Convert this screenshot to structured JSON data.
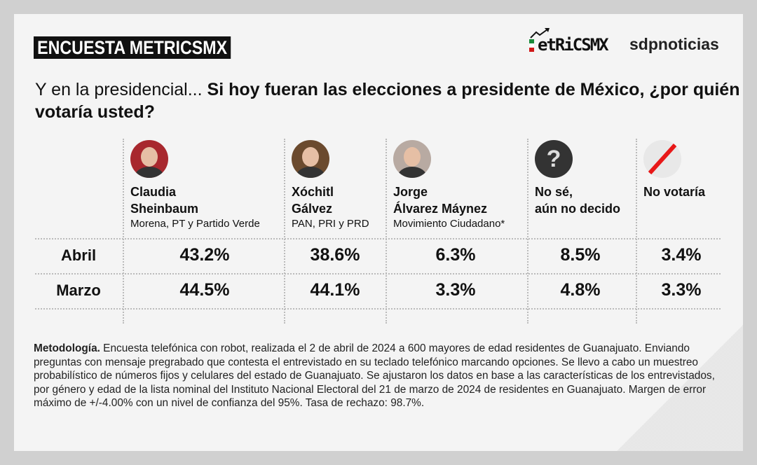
{
  "header": {
    "badge": "ENCUESTA METRICSMX",
    "logo_metrics": "etRiCSMX",
    "logo_sdp": "sdpnoticias"
  },
  "question": {
    "lead": "Y en la presidencial... ",
    "bold": "Si hoy fueran las elecciones a presidente de México, ¿por quién votaría usted?"
  },
  "candidates": [
    {
      "name": "Claudia\nSheinbaum",
      "party": "Morena, PT y Partido Verde",
      "icon": "photo-avatar",
      "color": "#a8282e"
    },
    {
      "name": "Xóchitl\nGálvez",
      "party": "PAN, PRI y PRD",
      "icon": "photo-avatar",
      "color": "#6b4a2e"
    },
    {
      "name": "Jorge\nÁlvarez Máynez",
      "party": "Movimiento Ciudadano*",
      "icon": "photo-avatar",
      "color": "#b8aaa2"
    },
    {
      "name": "No sé,\naún no decido",
      "party": "",
      "icon": "question-icon",
      "color": "#333333"
    },
    {
      "name": "No votaría",
      "party": "",
      "icon": "slash-icon",
      "color": "#e81818"
    }
  ],
  "chart_data": {
    "type": "table",
    "title": "Si hoy fueran las elecciones a presidente de México, ¿por quién votaría usted?",
    "columns": [
      "Claudia Sheinbaum",
      "Xóchitl Gálvez",
      "Jorge Álvarez Máynez",
      "No sé, aún no decido",
      "No votaría"
    ],
    "rows": [
      {
        "label": "Abril",
        "values": [
          "43.2%",
          "38.6%",
          "6.3%",
          "8.5%",
          "3.4%"
        ]
      },
      {
        "label": "Marzo",
        "values": [
          "44.5%",
          "44.1%",
          "3.3%",
          "4.8%",
          "3.3%"
        ]
      }
    ]
  },
  "methodology": {
    "label": "Metodología.",
    "text": " Encuesta telefónica con robot, realizada el 2 de abril de 2024 a 600 mayores de edad residentes de Guanajuato. Enviando preguntas con mensaje pregrabado que contesta el entrevistado en su teclado telefónico marcando opciones. Se llevo a cabo un muestreo probabilístico de números fijos y celulares del estado de Guanajuato. Se ajustaron los datos en base a las características de los entrevistados, por género y edad de la lista nominal del Instituto Nacional Electoral del 21 de marzo de 2024 de residentes en Guanajuato. Margen de error máximo de +/-4.00% con un nivel de confianza del 95%. Tasa de rechazo: 98.7%."
  }
}
